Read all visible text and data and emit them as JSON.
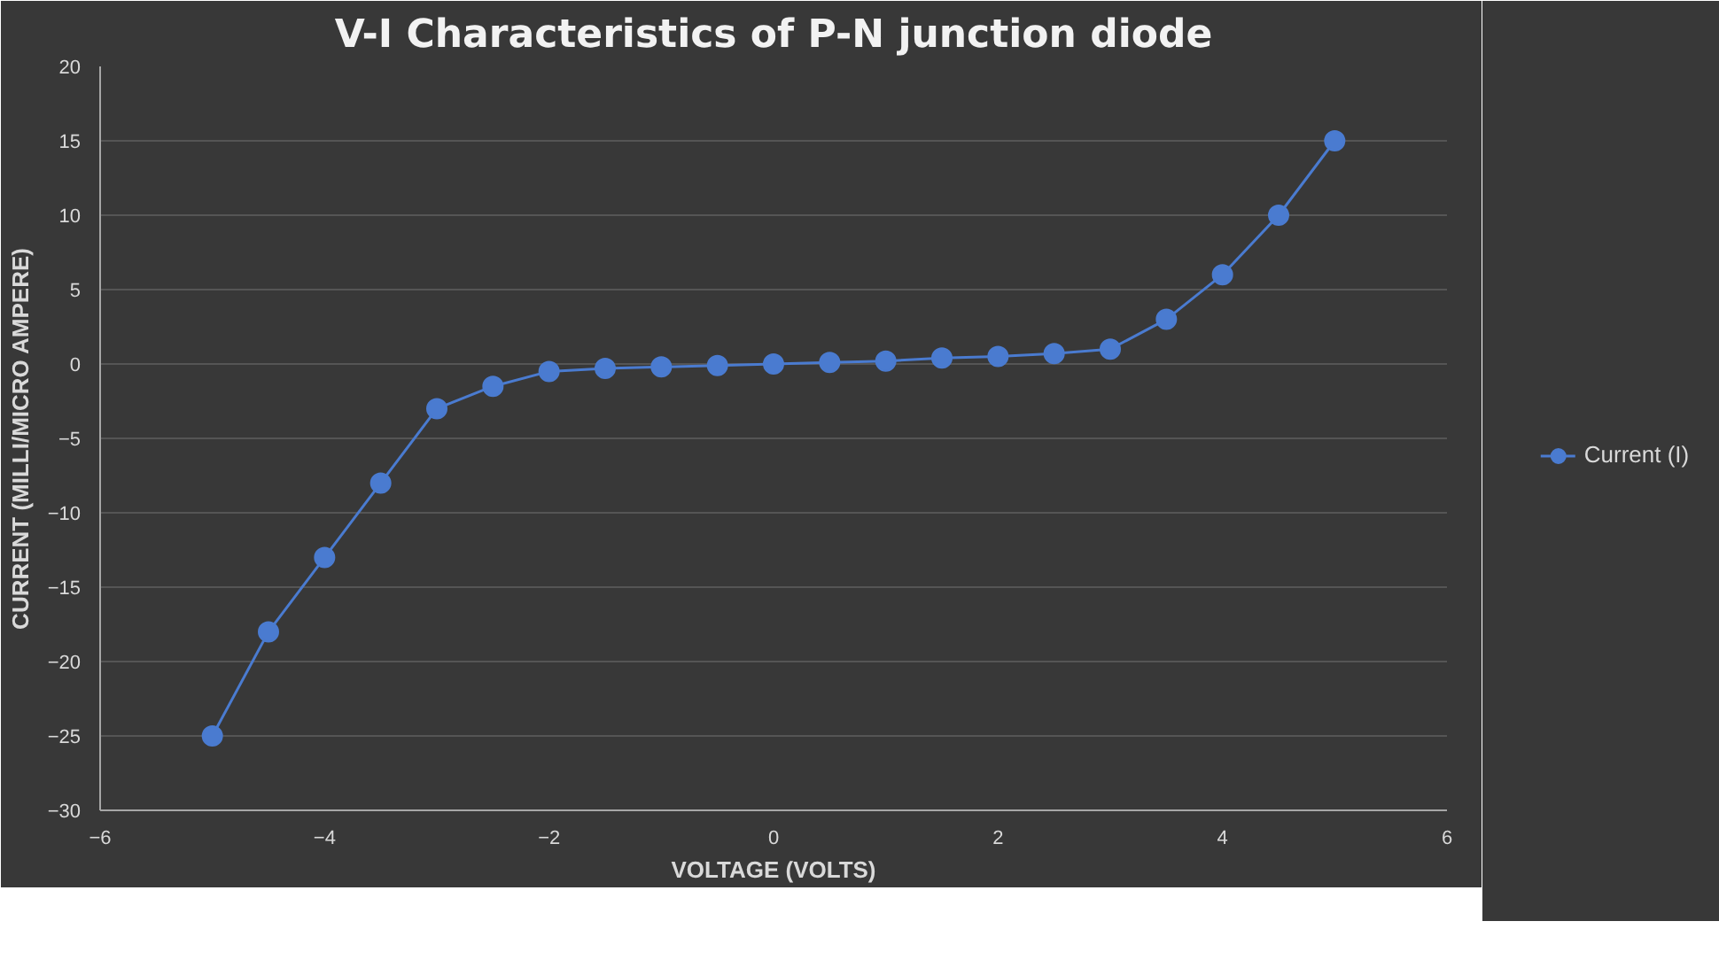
{
  "chart_data": {
    "type": "line",
    "title": "V-I Characteristics of P-N junction diode",
    "xlabel": "VOLTAGE (VOLTS)",
    "ylabel": "CURRENT (MILLI/MICRO AMPERE)",
    "x": [
      -5,
      -4.5,
      -4,
      -3.5,
      -3,
      -2.5,
      -2,
      -1.5,
      -1,
      -0.5,
      0,
      0.5,
      1,
      1.5,
      2,
      2.5,
      3,
      3.5,
      4,
      4.5,
      5
    ],
    "series": [
      {
        "name": "Current (I)",
        "color": "#4a7bd0",
        "values": [
          -25,
          -18,
          -13,
          -8,
          -3,
          -1.5,
          -0.5,
          -0.3,
          -0.2,
          -0.1,
          0,
          0.1,
          0.2,
          0.4,
          0.5,
          0.7,
          1,
          3,
          6,
          10,
          15
        ]
      }
    ],
    "marker": "circle",
    "line_style": "solid",
    "xlim": [
      -6,
      6
    ],
    "xticks": [
      -6,
      -4,
      -2,
      0,
      2,
      4,
      6
    ],
    "ylim": [
      -30,
      20
    ],
    "yticks": [
      -30,
      -25,
      -20,
      -15,
      -10,
      -5,
      0,
      5,
      10,
      15,
      20
    ],
    "grid": "y",
    "legend": "right"
  }
}
